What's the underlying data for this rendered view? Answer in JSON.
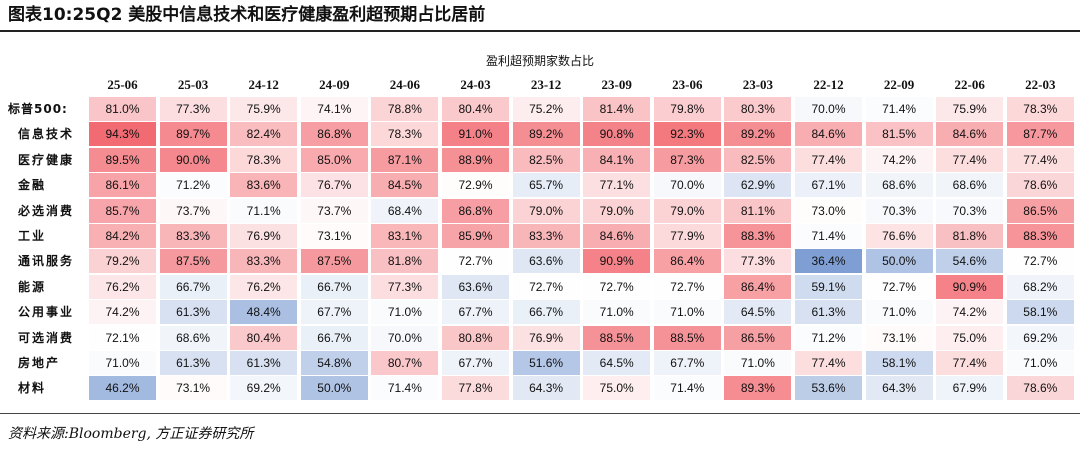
{
  "header": {
    "title": "图表10:25Q2 美股中信息技术和医疗健康盈利超预期占比居前"
  },
  "source": "资料来源:Bloomberg, 方正证券研究所",
  "chart_data": {
    "type": "heatmap",
    "title": "盈利超预期家数占比",
    "columns": [
      "25-06",
      "25-03",
      "24-12",
      "24-09",
      "24-06",
      "24-03",
      "23-12",
      "23-09",
      "23-06",
      "23-03",
      "22-12",
      "22-09",
      "22-06",
      "22-03"
    ],
    "rows": [
      {
        "label": "标普500:",
        "values": [
          "81.0%",
          "77.3%",
          "75.9%",
          "74.1%",
          "78.8%",
          "80.4%",
          "75.2%",
          "81.4%",
          "79.8%",
          "80.3%",
          "70.0%",
          "71.4%",
          "75.9%",
          "78.3%"
        ]
      },
      {
        "label": "信息技术",
        "values": [
          "94.3%",
          "89.7%",
          "82.4%",
          "86.8%",
          "78.3%",
          "91.0%",
          "89.2%",
          "90.8%",
          "92.3%",
          "89.2%",
          "84.6%",
          "81.5%",
          "84.6%",
          "87.7%"
        ]
      },
      {
        "label": "医疗健康",
        "values": [
          "89.5%",
          "90.0%",
          "78.3%",
          "85.0%",
          "87.1%",
          "88.9%",
          "82.5%",
          "84.1%",
          "87.3%",
          "82.5%",
          "77.4%",
          "74.2%",
          "77.4%",
          "77.4%"
        ]
      },
      {
        "label": "金融",
        "values": [
          "86.1%",
          "71.2%",
          "83.6%",
          "76.7%",
          "84.5%",
          "72.9%",
          "65.7%",
          "77.1%",
          "70.0%",
          "62.9%",
          "67.1%",
          "68.6%",
          "68.6%",
          "78.6%"
        ]
      },
      {
        "label": "必选消费",
        "values": [
          "85.7%",
          "73.7%",
          "71.1%",
          "73.7%",
          "68.4%",
          "86.8%",
          "79.0%",
          "79.0%",
          "79.0%",
          "81.1%",
          "73.0%",
          "70.3%",
          "70.3%",
          "86.5%"
        ]
      },
      {
        "label": "工业",
        "values": [
          "84.2%",
          "83.3%",
          "76.9%",
          "73.1%",
          "83.1%",
          "85.9%",
          "83.3%",
          "84.6%",
          "77.9%",
          "88.3%",
          "71.4%",
          "76.6%",
          "81.8%",
          "88.3%"
        ]
      },
      {
        "label": "通讯服务",
        "values": [
          "79.2%",
          "87.5%",
          "83.3%",
          "87.5%",
          "81.8%",
          "72.7%",
          "63.6%",
          "90.9%",
          "86.4%",
          "77.3%",
          "36.4%",
          "50.0%",
          "54.6%",
          "72.7%"
        ]
      },
      {
        "label": "能源",
        "values": [
          "76.2%",
          "66.7%",
          "76.2%",
          "66.7%",
          "77.3%",
          "63.6%",
          "72.7%",
          "72.7%",
          "72.7%",
          "86.4%",
          "59.1%",
          "72.7%",
          "90.9%",
          "68.2%"
        ]
      },
      {
        "label": "公用事业",
        "values": [
          "74.2%",
          "61.3%",
          "48.4%",
          "67.7%",
          "71.0%",
          "67.7%",
          "66.7%",
          "71.0%",
          "71.0%",
          "64.5%",
          "61.3%",
          "71.0%",
          "74.2%",
          "58.1%"
        ]
      },
      {
        "label": "可选消费",
        "values": [
          "72.1%",
          "68.6%",
          "80.4%",
          "66.7%",
          "70.0%",
          "80.8%",
          "76.9%",
          "88.5%",
          "88.5%",
          "86.5%",
          "71.2%",
          "73.1%",
          "75.0%",
          "69.2%"
        ]
      },
      {
        "label": "房地产",
        "values": [
          "71.0%",
          "61.3%",
          "61.3%",
          "54.8%",
          "80.7%",
          "67.7%",
          "51.6%",
          "64.5%",
          "67.7%",
          "71.0%",
          "77.4%",
          "58.1%",
          "77.4%",
          "71.0%"
        ]
      },
      {
        "label": "材料",
        "values": [
          "46.2%",
          "73.1%",
          "69.2%",
          "50.0%",
          "71.4%",
          "77.8%",
          "64.3%",
          "75.0%",
          "71.4%",
          "89.3%",
          "53.6%",
          "64.3%",
          "67.9%",
          "78.6%"
        ]
      }
    ],
    "color_scale": {
      "low": "#7f9fd4",
      "mid": "#ffffff",
      "high": "#f26b72",
      "midpoint": 72.5
    }
  }
}
